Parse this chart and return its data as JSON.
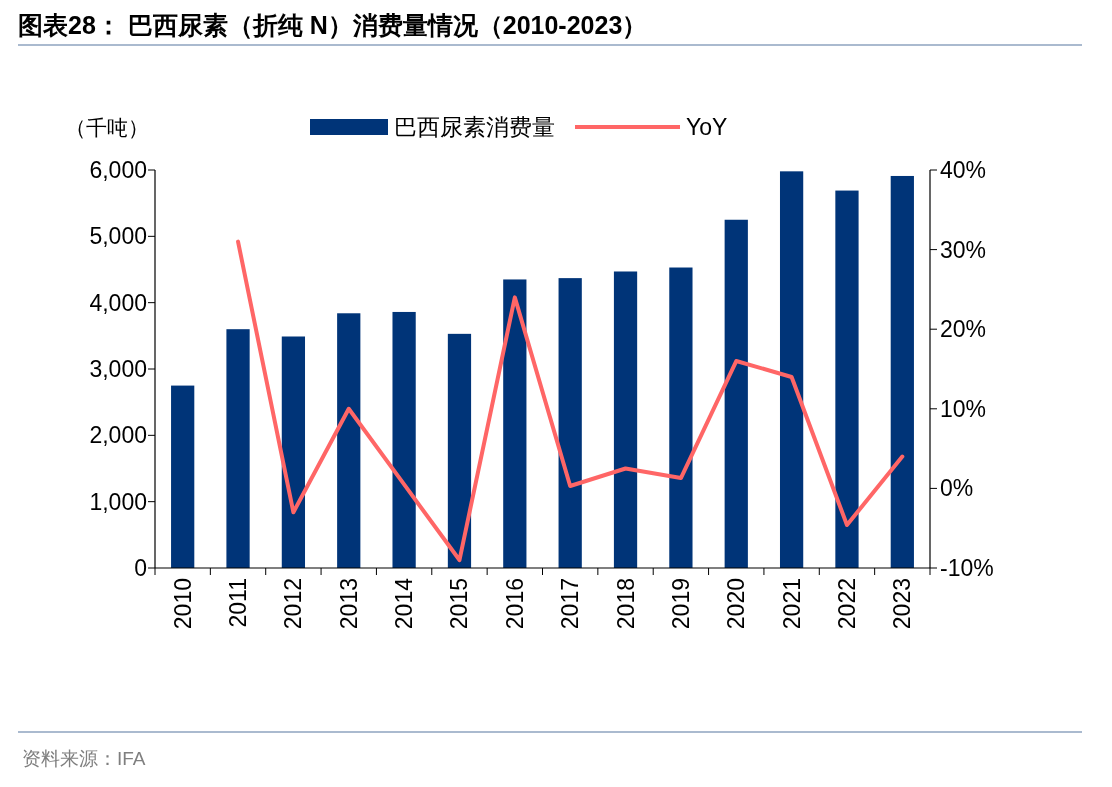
{
  "chart_data": {
    "type": "bar",
    "title": "图表28：  巴西尿素（折纯 N）消费量情况（2010-2023）",
    "ylabel": "（千吨）",
    "annotations": [
      "资料来源：IFA"
    ],
    "categories": [
      "2010",
      "2011",
      "2012",
      "2013",
      "2014",
      "2015",
      "2016",
      "2017",
      "2018",
      "2019",
      "2020",
      "2021",
      "2022",
      "2023"
    ],
    "series": [
      {
        "name": "巴西尿素消费量",
        "color": "#003478",
        "values": [
          2750,
          3600,
          3490,
          3840,
          3860,
          3530,
          4350,
          4370,
          4470,
          4530,
          5250,
          5980,
          5690,
          5910
        ]
      },
      {
        "name": "YoY",
        "type": "line",
        "axis": "y2",
        "color": "#ff6666",
        "values": [
          null,
          31,
          -3,
          10,
          0.5,
          -9,
          24,
          0.3,
          2.5,
          1.3,
          16,
          14,
          -4.6,
          4
        ]
      }
    ],
    "ylim": [
      0,
      6000
    ],
    "yticks": [
      0,
      {
        "value": 1000,
        "label": "1,000"
      },
      {
        "value": 2000,
        "label": "2,000"
      },
      {
        "value": 3000,
        "label": "3,000"
      },
      {
        "value": 4000,
        "label": "4,000"
      },
      {
        "value": 5000,
        "label": "5,000"
      },
      {
        "value": 6000,
        "label": "6,000"
      }
    ],
    "y2lim": [
      -10,
      40
    ],
    "y2ticks": [
      {
        "value": -10,
        "label": "-10%"
      },
      {
        "value": 0,
        "label": "0%"
      },
      {
        "value": 10,
        "label": "10%"
      },
      {
        "value": 20,
        "label": "20%"
      },
      {
        "value": 30,
        "label": "30%"
      },
      {
        "value": 40,
        "label": "40%"
      }
    ],
    "legend": "top",
    "grid": false
  }
}
